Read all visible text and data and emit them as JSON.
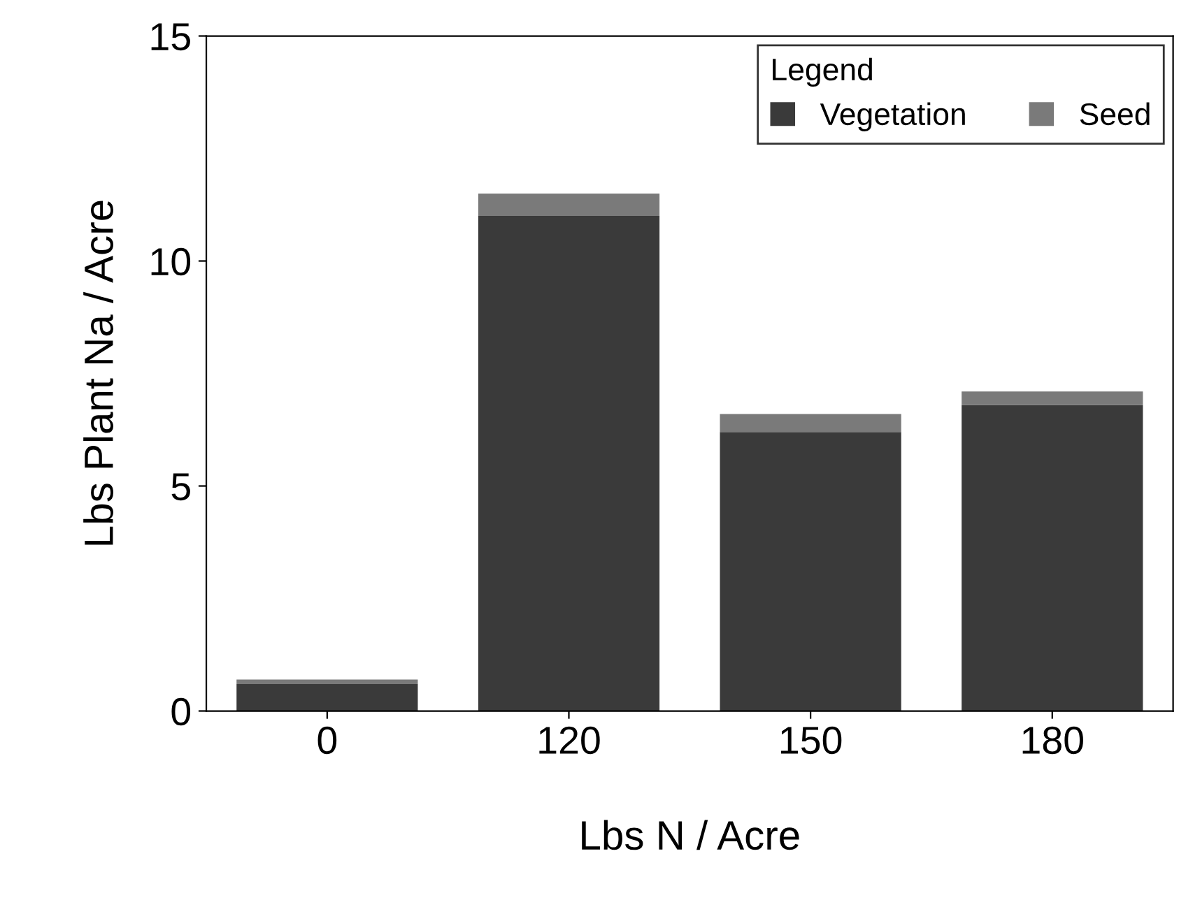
{
  "chart_data": {
    "type": "bar",
    "xlabel": "Lbs N / Acre",
    "ylabel": "Lbs Plant Na / Acre",
    "categories": [
      "0",
      "120",
      "150",
      "180"
    ],
    "series": [
      {
        "name": "Vegetation",
        "color": "#3a3a3a",
        "values": [
          0.6,
          11.0,
          6.2,
          6.8
        ]
      },
      {
        "name": "Seed",
        "color": "#7a7a7a",
        "values": [
          0.1,
          0.5,
          0.4,
          0.3
        ]
      }
    ],
    "stacked": true,
    "ylim": [
      0,
      15
    ],
    "yticks": [
      0,
      5,
      10,
      15
    ],
    "grid": false,
    "legend": "top right",
    "legend_title": "Legend"
  }
}
